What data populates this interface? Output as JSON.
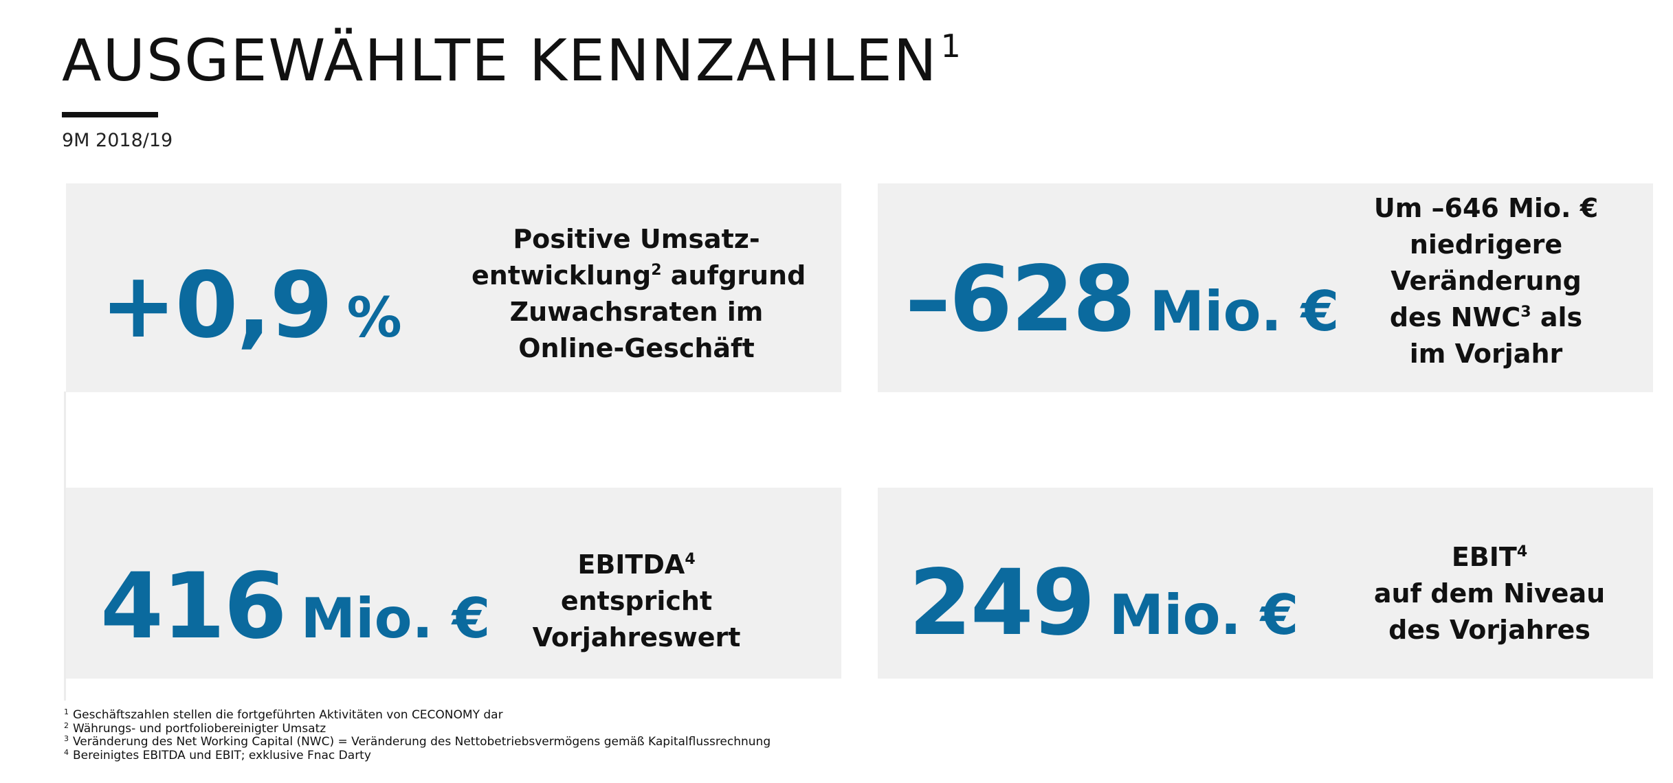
{
  "header": {
    "title": "AUSGEWÄHLTE KENNZAHLEN",
    "title_note": "1",
    "period": "9M 2018/19"
  },
  "kpis": [
    {
      "value": "+0,9",
      "unit": "%",
      "lines": [
        {
          "text": "Positive Umsatz-"
        },
        {
          "text": "entwicklung",
          "note": "2",
          "after": " aufgrund"
        },
        {
          "text": "Zuwachsraten im"
        },
        {
          "text": "Online-Geschäft"
        }
      ]
    },
    {
      "value": "–628",
      "unit": "Mio. €",
      "lines": [
        {
          "text": "Um –646 Mio. €"
        },
        {
          "text": "niedrigere"
        },
        {
          "text": "Veränderung"
        },
        {
          "text": "des NWC",
          "note": "3",
          "after": " als"
        },
        {
          "text": "im Vorjahr"
        }
      ]
    },
    {
      "value": "416",
      "unit": "Mio. €",
      "lines": [
        {
          "text": "EBITDA",
          "note": "4"
        },
        {
          "text": "entspricht"
        },
        {
          "text": "Vorjahreswert"
        }
      ]
    },
    {
      "value": "249",
      "unit": "Mio. €",
      "lines": [
        {
          "text": "EBIT",
          "note": "4"
        },
        {
          "text": "auf dem Niveau"
        },
        {
          "text": "des Vorjahres"
        }
      ]
    }
  ],
  "footnotes": [
    {
      "mark": "1",
      "text": "Geschäftszahlen stellen die fortgeführten Aktivitäten von CECONOMY dar"
    },
    {
      "mark": "2",
      "text": "Währungs- und portfoliobereinigter Umsatz"
    },
    {
      "mark": "3",
      "text": "Veränderung des Net Working Capital (NWC) = Veränderung des Nettobetriebsvermögens gemäß Kapitalflussrechnung"
    },
    {
      "mark": "4",
      "text": "Bereinigtes EBITDA und EBIT; exklusive Fnac Darty"
    }
  ],
  "colors": {
    "accent": "#0b6a9e",
    "card_background": "#f0f0f0",
    "text": "#111111"
  }
}
